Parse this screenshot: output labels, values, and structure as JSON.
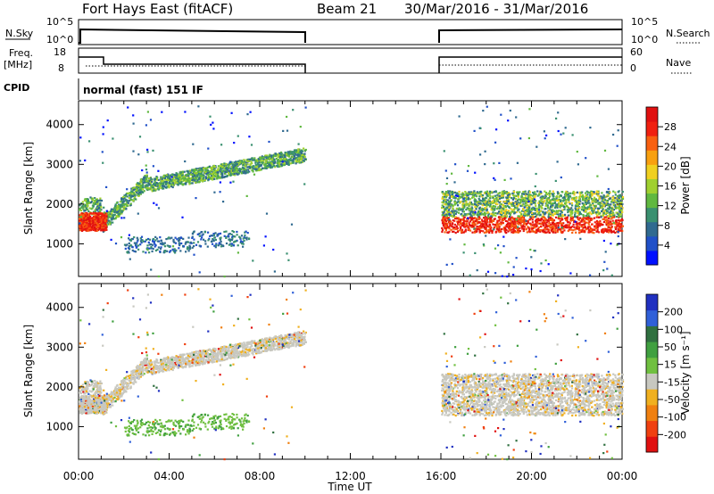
{
  "header": {
    "station": "Fort Hays East (fitACF)",
    "beam": "Beam 21",
    "dates": "30/Mar/2016 - 31/Mar/2016"
  },
  "params": {
    "nsky_label": "N.Sky",
    "nsky_ticks": [
      "10^5",
      "10^0"
    ],
    "nsearch_label": "N.Search",
    "nsearch_ticks": [
      "10^5",
      "10^0"
    ],
    "freq_label": "Freq.",
    "freq_unit": "[MHz]",
    "freq_ticks": [
      "18",
      "8"
    ],
    "nave_label": "Nave",
    "nave_ticks": [
      "60",
      "0"
    ],
    "cpid_label": "CPID",
    "cpid_text": "normal (fast) 151 IF"
  },
  "chart_data": [
    {
      "type": "heatmap",
      "name": "power-panel",
      "xlabel": "Time UT",
      "ylabel": "Slant Range [km]",
      "x_ticks": [
        "00:00",
        "04:00",
        "08:00",
        "12:00",
        "16:00",
        "20:00",
        "00:00"
      ],
      "x_range_hours": [
        0,
        24
      ],
      "y_ticks": [
        1000,
        2000,
        3000,
        4000
      ],
      "ylim": [
        180,
        4600
      ],
      "colorbar_label": "Power [dB]",
      "colorbar_ticks": [
        "4",
        "8",
        "12",
        "16",
        "20",
        "24",
        "28"
      ],
      "colorbar_range": [
        0,
        30
      ],
      "colors": [
        "#0010ff",
        "#2050c8",
        "#306a90",
        "#3a9070",
        "#60b840",
        "#a0d030",
        "#f0d020",
        "#f8a010",
        "#f86010",
        "#f02010",
        "#e01010"
      ],
      "data_gap_hours": [
        10,
        16
      ]
    },
    {
      "type": "heatmap",
      "name": "velocity-panel",
      "xlabel": "Time UT",
      "ylabel": "Slant Range [km]",
      "x_ticks": [
        "00:00",
        "04:00",
        "08:00",
        "12:00",
        "16:00",
        "20:00",
        "00:00"
      ],
      "x_range_hours": [
        0,
        24
      ],
      "y_ticks": [
        1000,
        2000,
        3000,
        4000
      ],
      "ylim": [
        180,
        4600
      ],
      "colorbar_label": "Velocity [m s⁻¹]",
      "colorbar_ticks": [
        "200",
        "100",
        "50",
        "15",
        "-15",
        "-50",
        "-100",
        "-200"
      ],
      "colorbar_range": [
        -250,
        250
      ],
      "colors": [
        "#2030c0",
        "#3060d8",
        "#307040",
        "#40a040",
        "#70c040",
        "#c8c8c0",
        "#f0b020",
        "#f08010",
        "#f04010",
        "#e01010"
      ],
      "data_gap_hours": [
        10,
        16
      ]
    }
  ]
}
